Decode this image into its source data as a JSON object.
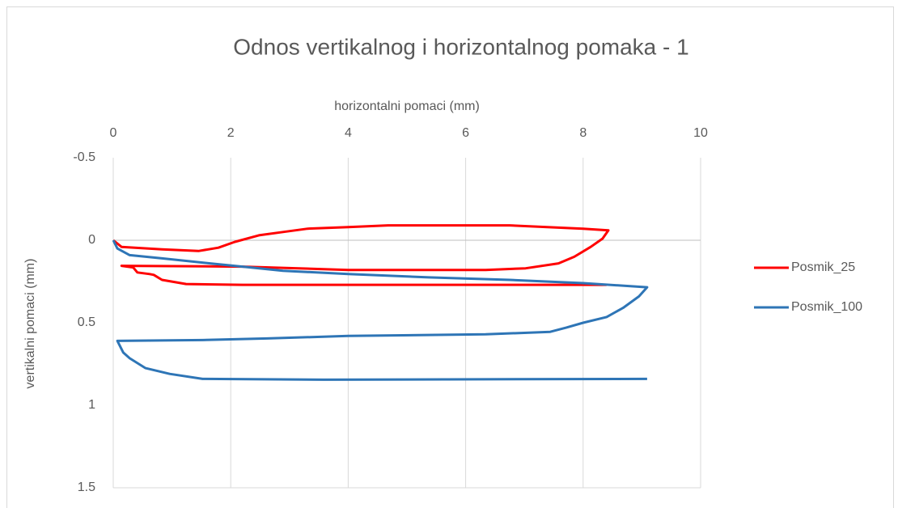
{
  "chart_data": {
    "type": "line",
    "title": "Odnos vertikalnog i horizontalnog pomaka - 1",
    "x_label": "horizontalni pomaci (mm)",
    "y_label": "vertikalni pomaci (mm)",
    "x_axis_position": "top",
    "y_inverted": true,
    "xlim": [
      0,
      10
    ],
    "xticks": [
      0,
      2,
      4,
      6,
      8,
      10
    ],
    "ylim": [
      -0.5,
      1.5
    ],
    "yticks": [
      -0.5,
      0,
      0.5,
      1,
      1.5
    ],
    "x_grid": true,
    "legend": "right",
    "series": [
      {
        "name": "Posmik_25",
        "color": "#ff0000",
        "x": [
          0,
          0.14,
          0.83,
          1.45,
          1.79,
          2.07,
          2.48,
          2.89,
          3.31,
          4.0,
          4.68,
          6.75,
          8.0,
          8.43,
          8.33,
          8.13,
          7.85,
          7.58,
          7.02,
          6.34,
          4.0,
          2.2,
          0.14,
          0.34,
          0.41,
          0.62,
          0.69,
          0.83,
          1.24,
          2.2,
          8.4
        ],
        "values": [
          0,
          0.04,
          0.055,
          0.065,
          0.045,
          0.01,
          -0.03,
          -0.05,
          -0.07,
          -0.08,
          -0.09,
          -0.09,
          -0.07,
          -0.06,
          -0.01,
          0.04,
          0.1,
          0.14,
          0.17,
          0.18,
          0.18,
          0.16,
          0.155,
          0.165,
          0.195,
          0.205,
          0.21,
          0.24,
          0.265,
          0.27,
          0.27
        ]
      },
      {
        "name": "Posmik_100",
        "color": "#2e75b6",
        "x": [
          0,
          0.07,
          0.28,
          0.83,
          1.65,
          2.2,
          2.89,
          4.0,
          5.37,
          6.75,
          8.0,
          9.09,
          8.95,
          8.68,
          8.4,
          8.0,
          7.71,
          7.44,
          6.34,
          4.0,
          2.62,
          1.52,
          0.07,
          0.17,
          0.28,
          0.55,
          0.96,
          1.52,
          3.58,
          9.09
        ],
        "values": [
          0,
          0.05,
          0.09,
          0.11,
          0.14,
          0.16,
          0.185,
          0.205,
          0.225,
          0.24,
          0.26,
          0.285,
          0.34,
          0.41,
          0.465,
          0.5,
          0.53,
          0.555,
          0.57,
          0.58,
          0.595,
          0.605,
          0.61,
          0.68,
          0.715,
          0.775,
          0.81,
          0.84,
          0.845,
          0.84
        ]
      }
    ]
  }
}
